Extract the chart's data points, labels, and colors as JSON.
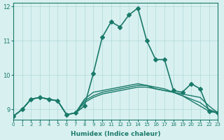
{
  "xlabel": "Humidex (Indice chaleur)",
  "ylabel": "",
  "bg_color": "#d8f0f0",
  "line_color": "#1a7a6a",
  "grid_color": "#b0d8d8",
  "xlim": [
    0,
    23
  ],
  "ylim": [
    8.7,
    12.1
  ],
  "yticks": [
    9,
    10,
    11,
    12
  ],
  "xticks": [
    0,
    1,
    2,
    3,
    4,
    5,
    6,
    7,
    8,
    9,
    10,
    11,
    12,
    13,
    14,
    15,
    16,
    17,
    18,
    19,
    20,
    21,
    22,
    23
  ],
  "series": [
    {
      "x": [
        0,
        1,
        2,
        3,
        4,
        5,
        6,
        7,
        8,
        9,
        10,
        11,
        12,
        13,
        14,
        15,
        16,
        17,
        18,
        19,
        20,
        21,
        22,
        23
      ],
      "y": [
        8.8,
        9.0,
        9.3,
        9.35,
        9.3,
        9.25,
        8.85,
        8.9,
        9.1,
        10.05,
        11.1,
        11.55,
        11.4,
        11.75,
        11.95,
        11.0,
        10.45,
        10.45,
        9.55,
        9.5,
        9.75,
        9.6,
        8.95,
        8.9
      ],
      "marker": "D",
      "markersize": 3,
      "linewidth": 1.2
    },
    {
      "x": [
        0,
        1,
        2,
        3,
        4,
        5,
        6,
        7,
        8,
        9,
        10,
        11,
        12,
        13,
        14,
        15,
        16,
        17,
        18,
        19,
        20,
        21,
        22,
        23
      ],
      "y": [
        8.8,
        9.0,
        9.3,
        9.35,
        9.3,
        9.25,
        8.85,
        8.9,
        9.3,
        9.5,
        9.55,
        9.6,
        9.65,
        9.7,
        9.75,
        9.7,
        9.6,
        9.55,
        9.5,
        9.45,
        9.4,
        9.35,
        9.1,
        8.9
      ],
      "marker": null,
      "markersize": 0,
      "linewidth": 1.0
    },
    {
      "x": [
        0,
        1,
        2,
        3,
        4,
        5,
        6,
        7,
        8,
        9,
        10,
        11,
        12,
        13,
        14,
        15,
        16,
        17,
        18,
        19,
        20,
        21,
        22,
        23
      ],
      "y": [
        8.8,
        9.0,
        9.3,
        9.35,
        9.3,
        9.25,
        8.85,
        8.9,
        9.25,
        9.4,
        9.5,
        9.55,
        9.6,
        9.65,
        9.7,
        9.7,
        9.65,
        9.6,
        9.5,
        9.4,
        9.3,
        9.2,
        9.0,
        8.9
      ],
      "marker": null,
      "markersize": 0,
      "linewidth": 1.0
    },
    {
      "x": [
        0,
        1,
        2,
        3,
        4,
        5,
        6,
        7,
        8,
        9,
        10,
        11,
        12,
        13,
        14,
        15,
        16,
        17,
        18,
        19,
        20,
        21,
        22,
        23
      ],
      "y": [
        8.8,
        9.0,
        9.3,
        9.35,
        9.3,
        9.25,
        8.85,
        8.9,
        9.2,
        9.35,
        9.45,
        9.5,
        9.55,
        9.6,
        9.65,
        9.65,
        9.6,
        9.55,
        9.5,
        9.4,
        9.25,
        9.1,
        8.95,
        8.9
      ],
      "marker": null,
      "markersize": 0,
      "linewidth": 1.0
    }
  ]
}
